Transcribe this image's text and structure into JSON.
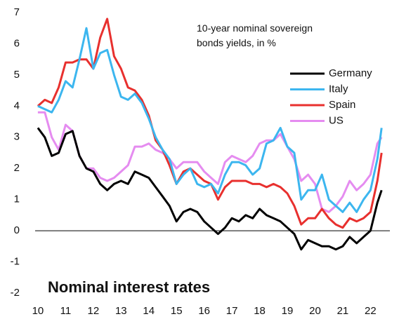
{
  "chart_data": {
    "type": "line",
    "title": "10-year nominal sovereign bonds yields, in %",
    "annotation": "Nominal interest rates",
    "x": [
      10,
      10.25,
      10.5,
      10.75,
      11,
      11.25,
      11.5,
      11.75,
      12,
      12.25,
      12.5,
      12.75,
      13,
      13.25,
      13.5,
      13.75,
      14,
      14.25,
      14.5,
      14.75,
      15,
      15.25,
      15.5,
      15.75,
      16,
      16.25,
      16.5,
      16.75,
      17,
      17.25,
      17.5,
      17.75,
      18,
      18.25,
      18.5,
      18.75,
      19,
      19.25,
      19.5,
      19.75,
      20,
      20.25,
      20.5,
      20.75,
      21,
      21.25,
      21.5,
      21.75,
      22,
      22.25,
      22.4
    ],
    "series": [
      {
        "name": "Germany",
        "color": "#000000",
        "values": [
          3.3,
          3.0,
          2.4,
          2.5,
          3.1,
          3.2,
          2.4,
          2.0,
          1.9,
          1.5,
          1.3,
          1.5,
          1.6,
          1.5,
          1.9,
          1.8,
          1.7,
          1.4,
          1.1,
          0.8,
          0.3,
          0.6,
          0.7,
          0.6,
          0.3,
          0.1,
          -0.1,
          0.1,
          0.4,
          0.3,
          0.5,
          0.4,
          0.7,
          0.5,
          0.4,
          0.3,
          0.1,
          -0.1,
          -0.6,
          -0.3,
          -0.4,
          -0.5,
          -0.5,
          -0.6,
          -0.5,
          -0.2,
          -0.4,
          -0.2,
          0.0,
          0.9,
          1.3
        ]
      },
      {
        "name": "Italy",
        "color": "#3cb6ef",
        "values": [
          4.0,
          3.9,
          3.8,
          4.2,
          4.8,
          4.6,
          5.5,
          6.5,
          5.2,
          5.7,
          5.8,
          5.0,
          4.3,
          4.2,
          4.4,
          4.1,
          3.6,
          3.0,
          2.6,
          2.3,
          1.5,
          1.8,
          2.0,
          1.5,
          1.4,
          1.5,
          1.2,
          1.8,
          2.2,
          2.2,
          2.1,
          1.8,
          2.0,
          2.8,
          2.9,
          3.3,
          2.7,
          2.5,
          1.0,
          1.3,
          1.3,
          1.8,
          1.0,
          0.8,
          0.6,
          0.9,
          0.6,
          1.0,
          1.3,
          2.3,
          3.3
        ]
      },
      {
        "name": "Spain",
        "color": "#e8302e",
        "values": [
          4.0,
          4.2,
          4.1,
          4.6,
          5.4,
          5.4,
          5.5,
          5.5,
          5.2,
          6.2,
          6.8,
          5.6,
          5.2,
          4.6,
          4.5,
          4.2,
          3.7,
          2.9,
          2.6,
          2.1,
          1.5,
          1.9,
          2.0,
          1.8,
          1.6,
          1.5,
          1.0,
          1.4,
          1.6,
          1.6,
          1.6,
          1.5,
          1.5,
          1.4,
          1.5,
          1.4,
          1.2,
          0.8,
          0.2,
          0.4,
          0.4,
          0.7,
          0.4,
          0.2,
          0.1,
          0.4,
          0.3,
          0.4,
          0.6,
          1.6,
          2.5
        ]
      },
      {
        "name": "US",
        "color": "#e58cf0",
        "values": [
          3.8,
          3.8,
          3.0,
          2.6,
          3.4,
          3.2,
          2.4,
          2.0,
          2.0,
          1.7,
          1.6,
          1.7,
          1.9,
          2.1,
          2.7,
          2.7,
          2.8,
          2.6,
          2.5,
          2.3,
          2.0,
          2.2,
          2.2,
          2.2,
          1.9,
          1.7,
          1.5,
          2.2,
          2.4,
          2.3,
          2.2,
          2.4,
          2.8,
          2.9,
          2.9,
          3.1,
          2.7,
          2.3,
          1.6,
          1.8,
          1.5,
          0.7,
          0.6,
          0.8,
          1.1,
          1.6,
          1.3,
          1.5,
          1.8,
          2.8,
          3.0
        ]
      }
    ],
    "xlim": [
      9.9,
      22.7
    ],
    "xticks": [
      10,
      11,
      12,
      13,
      14,
      15,
      16,
      17,
      18,
      19,
      20,
      21,
      22
    ],
    "ylim": [
      -2,
      7
    ],
    "yticks": [
      -2,
      -1,
      0,
      1,
      2,
      3,
      4,
      5,
      6,
      7
    ],
    "grid": false,
    "legend": "upper right"
  }
}
